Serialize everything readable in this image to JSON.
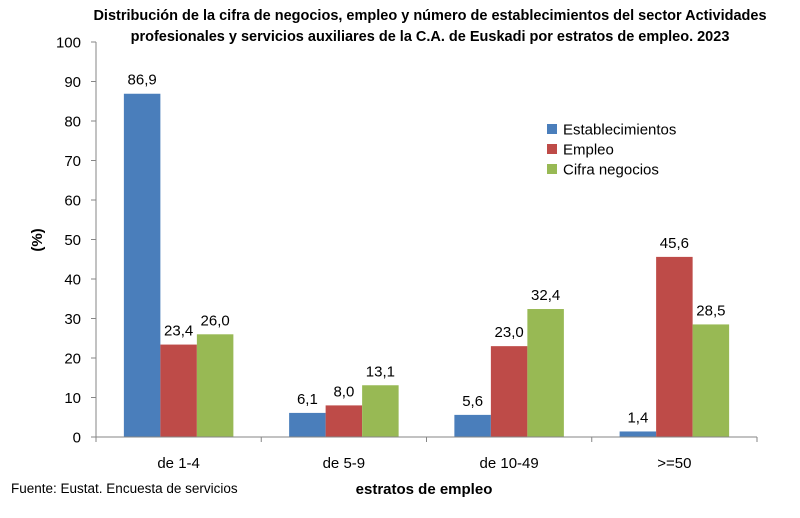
{
  "chart_data": {
    "type": "bar",
    "title_line1": "Distribución de la cifra de negocios, empleo y número de establecimientos del sector Actividades",
    "title_line2": "profesionales y servicios auxiliares de la C.A. de Euskadi por estratos de empleo. 2023",
    "xlabel": "estratos de empleo",
    "ylabel": "(%)",
    "ylim": [
      0,
      100
    ],
    "yticks": [
      0,
      10,
      20,
      30,
      40,
      50,
      60,
      70,
      80,
      90,
      100
    ],
    "categories": [
      "de 1-4",
      "de 5-9",
      "de 10-49",
      ">=50"
    ],
    "series": [
      {
        "name": "Establecimientos",
        "color": "#4a7ebb",
        "values": [
          86.9,
          6.1,
          5.6,
          1.4
        ],
        "labels": [
          "86,9",
          "6,1",
          "5,6",
          "1,4"
        ]
      },
      {
        "name": "Empleo",
        "color": "#be4b48",
        "values": [
          23.4,
          8.0,
          23.0,
          45.6
        ],
        "labels": [
          "23,4",
          "8,0",
          "23,0",
          "45,6"
        ]
      },
      {
        "name": "Cifra negocios",
        "color": "#98b954",
        "values": [
          26.0,
          13.1,
          32.4,
          28.5
        ],
        "labels": [
          "26,0",
          "13,1",
          "32,4",
          "28,5"
        ]
      }
    ],
    "legend_position": "top-right",
    "grid": false
  },
  "source": "Fuente: Eustat. Encuesta de servicios"
}
